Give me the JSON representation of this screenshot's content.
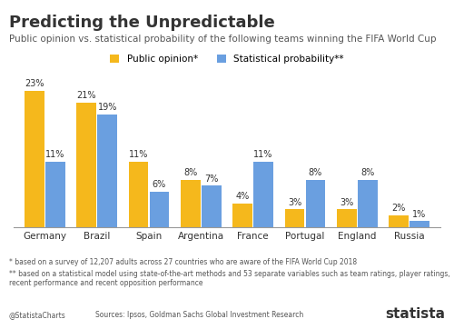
{
  "chart_data": {
    "type": "bar",
    "title": "Predicting the Unpredictable",
    "subtitle": "Public opinion vs. statistical probability of the following teams winning the FIFA World Cup",
    "categories": [
      "Germany",
      "Brazil",
      "Spain",
      "Argentina",
      "France",
      "Portugal",
      "England",
      "Russia"
    ],
    "series": [
      {
        "name": "Public opinion*",
        "color": "#f5b81c",
        "values": [
          23,
          21,
          11,
          8,
          4,
          3,
          3,
          2
        ],
        "value_labels": [
          "23%",
          "21%",
          "11%",
          "8%",
          "4%",
          "3%",
          "3%",
          "2%"
        ]
      },
      {
        "name": "Statistical probability**",
        "color": "#6a9fe0",
        "values": [
          11,
          19,
          6,
          7,
          11,
          8,
          8,
          1
        ],
        "value_labels": [
          "11%",
          "19%",
          "6%",
          "7%",
          "11%",
          "8%",
          "8%",
          "1%"
        ]
      }
    ],
    "ylim": [
      0,
      25
    ],
    "data_labels": true,
    "tick_labels": "x",
    "grid": false,
    "legend": "upper center",
    "notes": [
      "* based on a survey of 12,207 adults across 27 countries who are aware of the FIFA World Cup 2018",
      "** based on a statistical model using state-of-the-art methods and 53 separate variables such as team ratings, player ratings, recent performance and recent opposition performance"
    ],
    "source": "Sources: Ipsos, Goldman Sachs Global Investment Research",
    "credit": "@StatistaCharts",
    "brand": "statista"
  }
}
